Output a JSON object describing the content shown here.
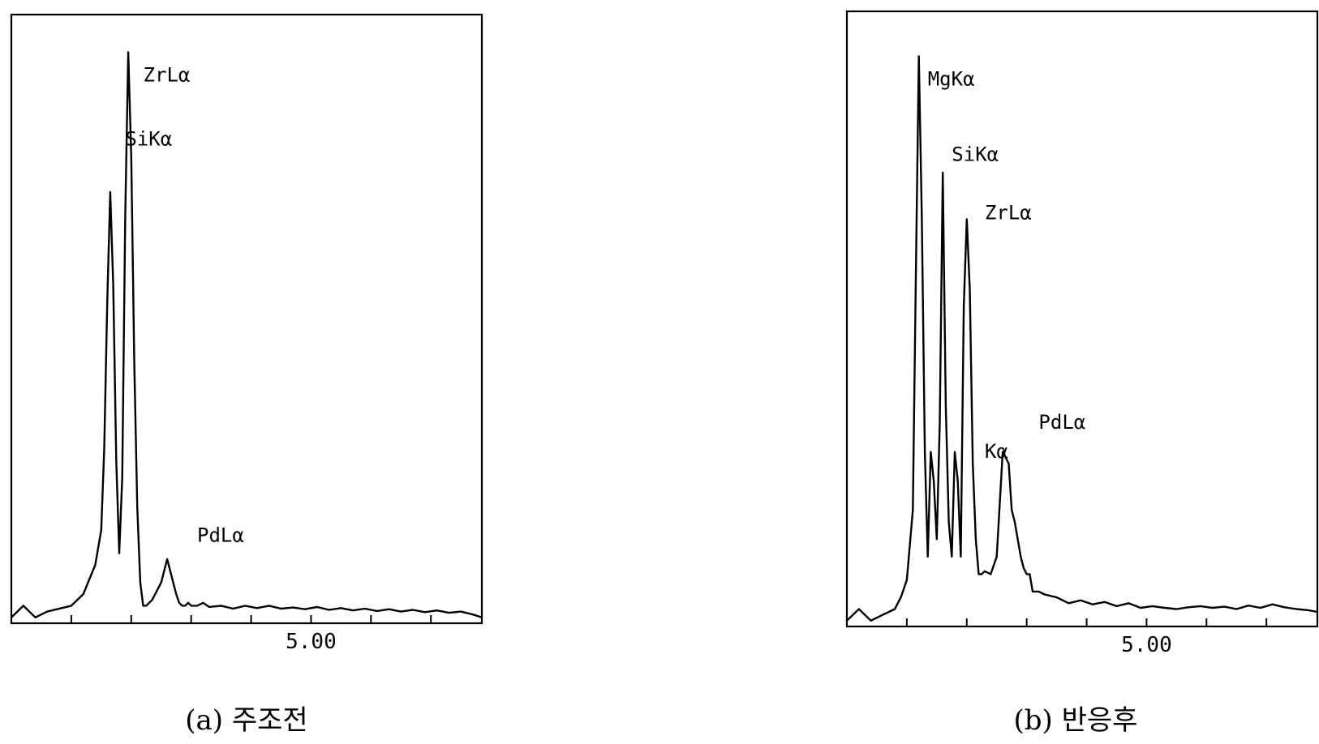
{
  "chart_data": [
    {
      "type": "line",
      "caption": "(a) 주조전",
      "x_ticks": [
        1,
        2,
        3,
        4,
        5,
        6,
        7
      ],
      "x_tick_labels": [
        {
          "x": 5,
          "label": "5.00"
        }
      ],
      "xlim": [
        0,
        7.85
      ],
      "ylim": [
        0,
        100
      ],
      "grid": false,
      "legend": "none",
      "series": [
        {
          "x": [
            0,
            0.2,
            0.4,
            0.6,
            1.0,
            1.2,
            1.4,
            1.5,
            1.55,
            1.6,
            1.65,
            1.7,
            1.75,
            1.8,
            1.85,
            1.9,
            1.95,
            2.0,
            2.05,
            2.1,
            2.15,
            2.2,
            2.25,
            2.3,
            2.35,
            2.4,
            2.5,
            2.6,
            2.7,
            2.75,
            2.8,
            2.85,
            2.9,
            2.95,
            3.0,
            3.1,
            3.2,
            3.3,
            3.5,
            3.7,
            3.9,
            4.1,
            4.3,
            4.5,
            4.7,
            4.9,
            5.1,
            5.3,
            5.5,
            5.7,
            5.9,
            6.1,
            6.3,
            6.5,
            6.7,
            6.9,
            7.1,
            7.3,
            7.5,
            7.7,
            7.85
          ],
          "y": [
            1,
            3,
            1,
            2,
            3,
            5,
            10,
            16,
            30,
            55,
            74,
            58,
            28,
            12,
            25,
            70,
            98,
            80,
            45,
            20,
            7,
            3,
            3,
            3.5,
            4,
            5,
            7,
            11,
            7,
            5,
            3.5,
            3,
            3,
            3.5,
            3,
            3,
            3.5,
            2.8,
            3,
            2.5,
            3,
            2.6,
            3,
            2.5,
            2.7,
            2.4,
            2.8,
            2.3,
            2.6,
            2.2,
            2.5,
            2.1,
            2.4,
            2,
            2.3,
            1.9,
            2.2,
            1.8,
            2,
            1.5,
            1
          ]
        }
      ],
      "annotations": [
        {
          "text": "ZrLα",
          "x": 2.2,
          "y": 93
        },
        {
          "text": "SiKα",
          "x": 1.9,
          "y": 82
        },
        {
          "text": "PdLα",
          "x": 3.1,
          "y": 14
        }
      ]
    },
    {
      "type": "line",
      "caption": "(b) 반응후",
      "x_ticks": [
        1,
        2,
        3,
        4,
        5,
        6,
        7
      ],
      "x_tick_labels": [
        {
          "x": 5,
          "label": "5.00"
        }
      ],
      "xlim": [
        0,
        7.85
      ],
      "ylim": [
        0,
        100
      ],
      "grid": false,
      "legend": "none",
      "series": [
        {
          "x": [
            0,
            0.2,
            0.4,
            0.6,
            0.8,
            0.9,
            1.0,
            1.1,
            1.15,
            1.2,
            1.25,
            1.3,
            1.35,
            1.4,
            1.45,
            1.5,
            1.55,
            1.6,
            1.65,
            1.7,
            1.75,
            1.8,
            1.85,
            1.9,
            1.95,
            2.0,
            2.05,
            2.1,
            2.15,
            2.2,
            2.25,
            2.3,
            2.4,
            2.5,
            2.6,
            2.7,
            2.75,
            2.8,
            2.85,
            2.9,
            2.95,
            3.0,
            3.05,
            3.1,
            3.2,
            3.3,
            3.5,
            3.7,
            3.9,
            4.1,
            4.3,
            4.5,
            4.7,
            4.9,
            5.1,
            5.3,
            5.5,
            5.7,
            5.9,
            6.1,
            6.3,
            6.5,
            6.7,
            6.9,
            7.1,
            7.3,
            7.5,
            7.7,
            7.85
          ],
          "y": [
            1,
            3,
            1,
            2,
            3,
            5,
            8,
            20,
            60,
            98,
            70,
            30,
            12,
            30,
            25,
            15,
            35,
            78,
            38,
            18,
            12,
            30,
            25,
            12,
            55,
            70,
            58,
            28,
            15,
            9,
            9,
            9.5,
            9,
            12,
            30,
            28,
            20,
            18,
            15,
            12,
            10,
            9,
            9,
            6,
            6,
            5.5,
            5,
            4,
            4.5,
            3.8,
            4.2,
            3.5,
            4,
            3.2,
            3.5,
            3.2,
            3,
            3.3,
            3.5,
            3.2,
            3.4,
            3,
            3.6,
            3.2,
            3.8,
            3.3,
            3,
            2.8,
            2.5
          ]
        }
      ],
      "annotations": [
        {
          "text": "MgKα",
          "x": 1.35,
          "y": 93
        },
        {
          "text": "SiKα",
          "x": 1.75,
          "y": 80
        },
        {
          "text": "ZrLα",
          "x": 2.3,
          "y": 70
        },
        {
          "text": "PdLα",
          "x": 3.2,
          "y": 34
        },
        {
          "text": "Kα",
          "x": 2.3,
          "y": 29
        }
      ]
    }
  ]
}
